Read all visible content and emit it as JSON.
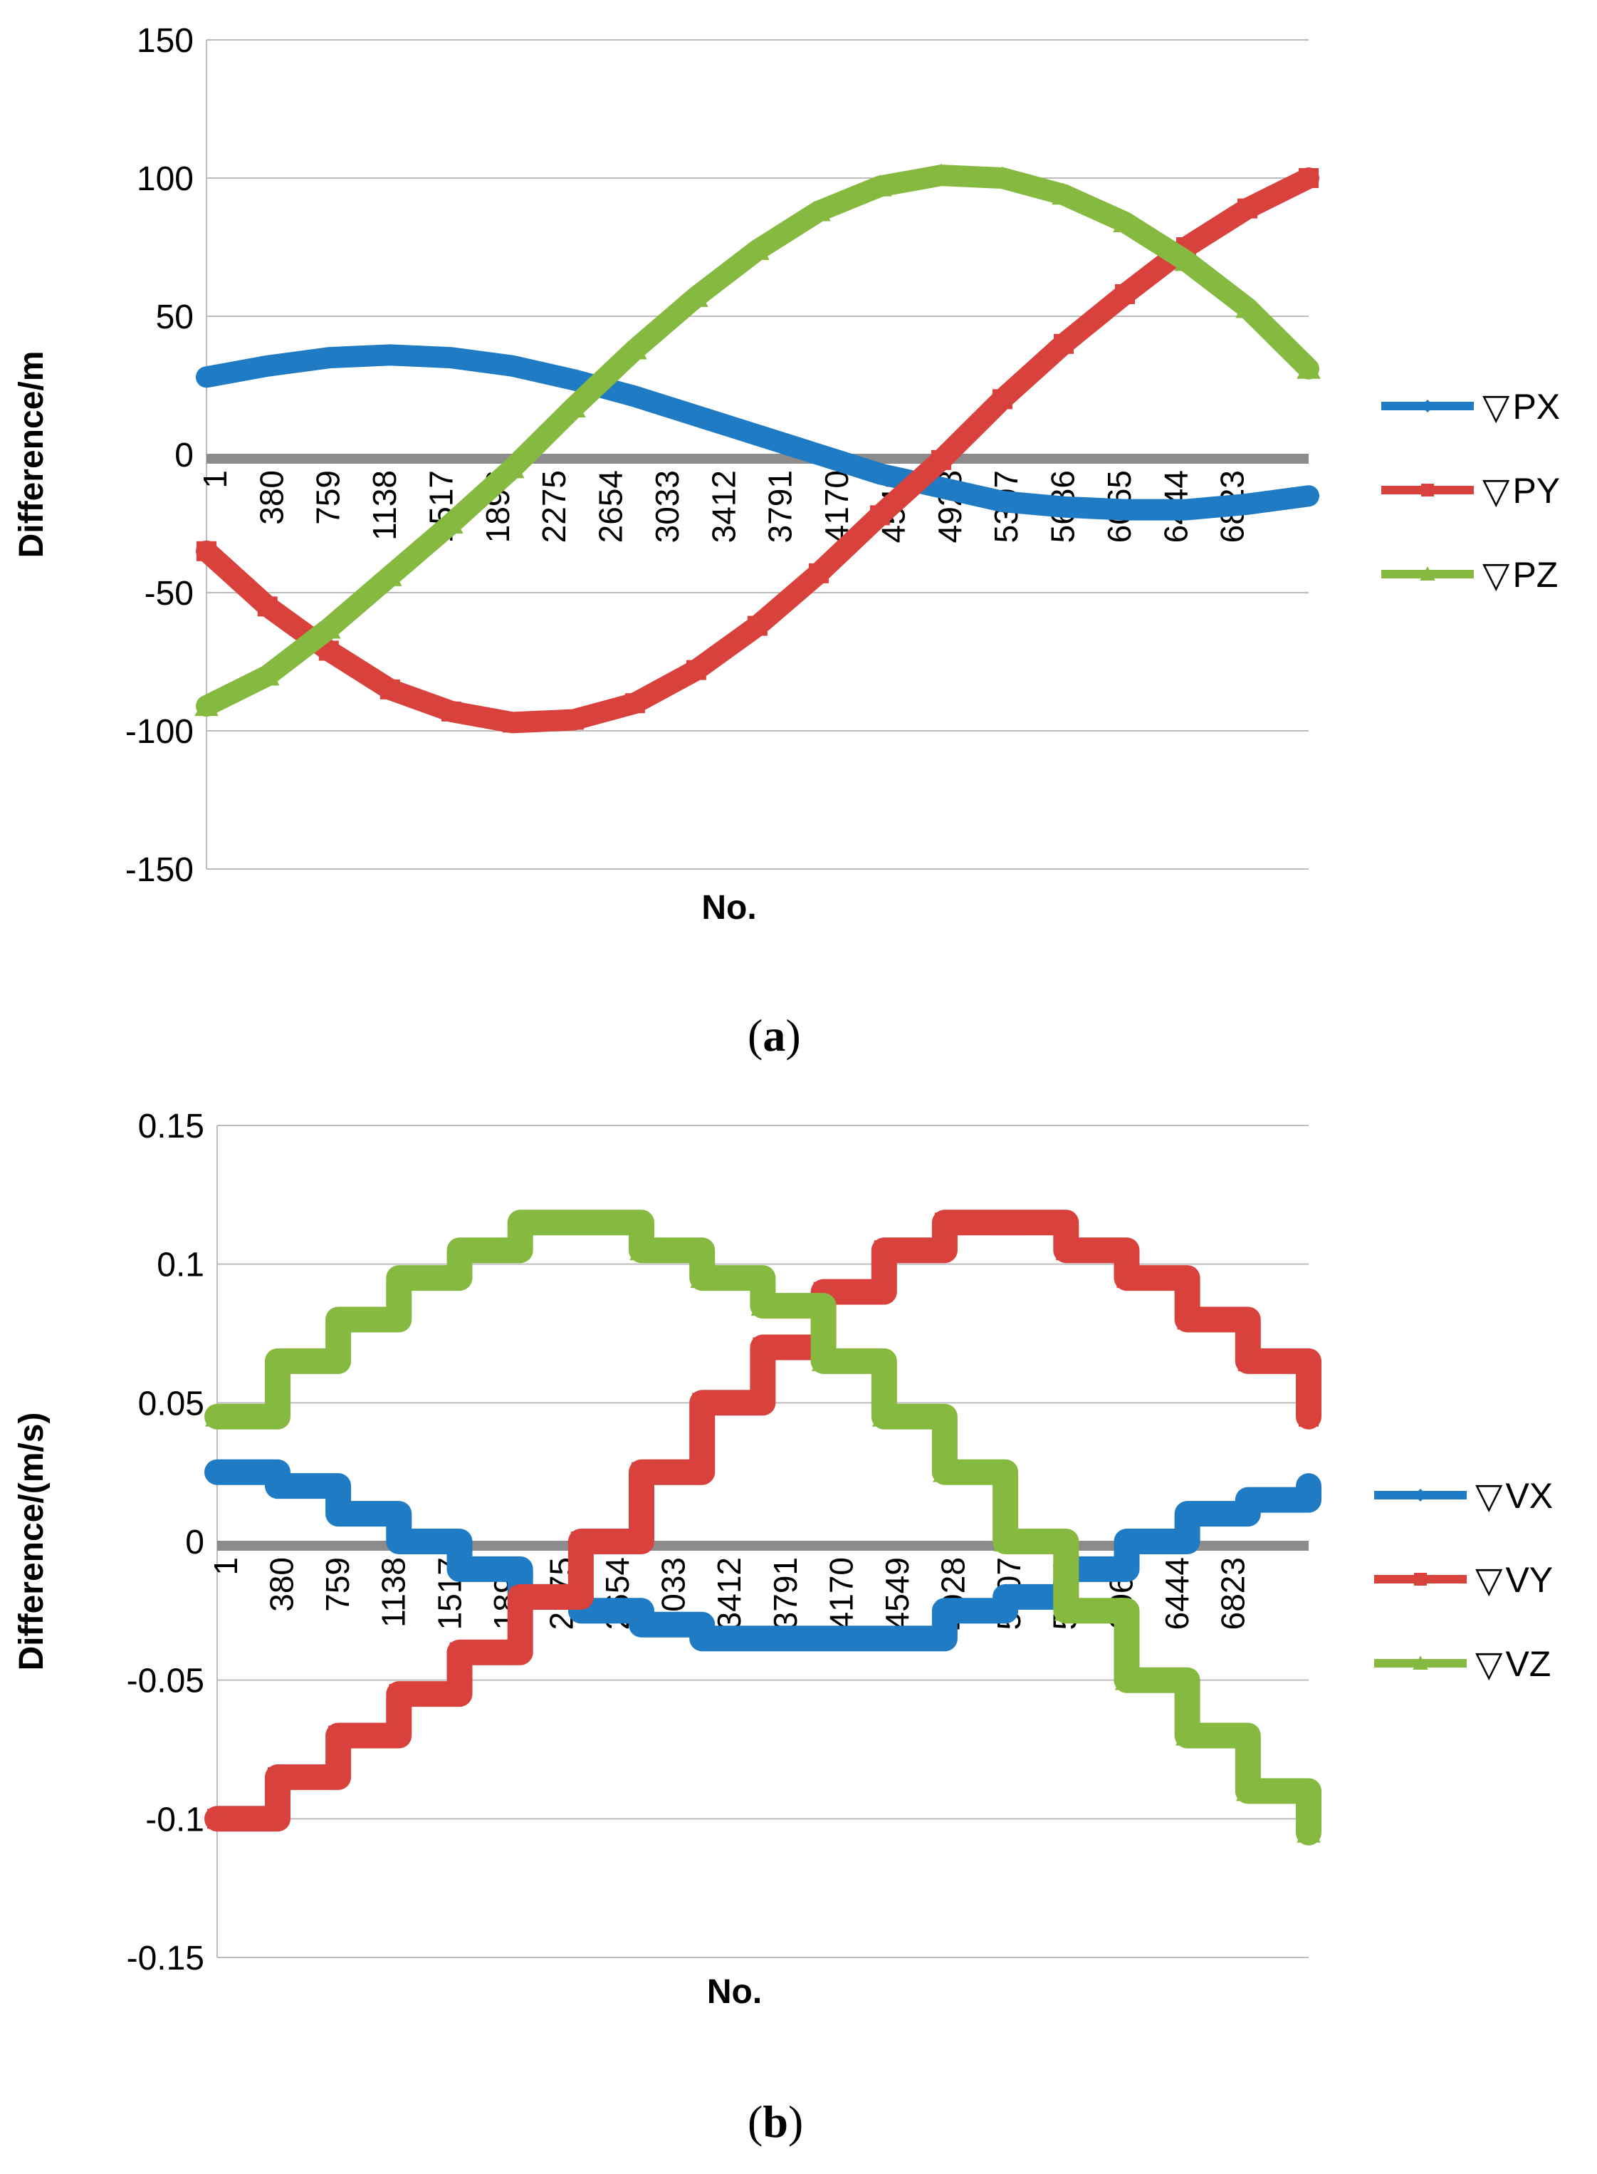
{
  "chart_data": [
    {
      "type": "line",
      "panel_label": "a",
      "xlabel": "No.",
      "ylabel": "Difference/m",
      "ylim": [
        -150,
        150
      ],
      "yticks": [
        "-150",
        "-100",
        "-50",
        "0",
        "50",
        "100",
        "150"
      ],
      "xlim": [
        1,
        7200
      ],
      "xticks": [
        "1",
        "380",
        "759",
        "1138",
        "1517",
        "1896",
        "2275",
        "2654",
        "3033",
        "3412",
        "3791",
        "4170",
        "4549",
        "4928",
        "5307",
        "5686",
        "6065",
        "6444",
        "6823"
      ],
      "legend_position": "right",
      "legend_symbol": "▽",
      "series": [
        {
          "name": "PX",
          "color": "#1f7bc4",
          "marker": "diamond",
          "x": [
            1,
            400,
            800,
            1200,
            1600,
            2000,
            2400,
            2800,
            3200,
            3600,
            4000,
            4400,
            4800,
            5200,
            5600,
            6000,
            6400,
            6800,
            7200
          ],
          "y": [
            28,
            32,
            35,
            36,
            35,
            32,
            27,
            21,
            14,
            7,
            0,
            -7,
            -12,
            -17,
            -19,
            -20,
            -20,
            -18,
            -15
          ]
        },
        {
          "name": "PY",
          "color": "#d9423c",
          "marker": "square",
          "x": [
            1,
            400,
            800,
            1200,
            1600,
            2000,
            2400,
            2800,
            3200,
            3600,
            4000,
            4400,
            4800,
            5200,
            5600,
            6000,
            6400,
            6800,
            7200
          ],
          "y": [
            -35,
            -55,
            -71,
            -85,
            -93,
            -97,
            -96,
            -90,
            -78,
            -62,
            -43,
            -22,
            -2,
            20,
            40,
            58,
            75,
            89,
            100
          ]
        },
        {
          "name": "PZ",
          "color": "#86b940",
          "marker": "triangle",
          "x": [
            1,
            400,
            800,
            1200,
            1600,
            2000,
            2400,
            2800,
            3200,
            3600,
            4000,
            4400,
            4800,
            5200,
            5600,
            6000,
            6400,
            6800,
            7200
          ],
          "y": [
            -91,
            -80,
            -63,
            -44,
            -25,
            -5,
            17,
            38,
            57,
            74,
            88,
            97,
            101,
            100,
            94,
            84,
            70,
            53,
            31
          ]
        }
      ]
    },
    {
      "type": "line",
      "panel_label": "b",
      "xlabel": "No.",
      "ylabel": "Difference/(m/s)",
      "ylim": [
        -0.15,
        0.15
      ],
      "yticks": [
        "-0.15",
        "-0.1",
        "-0.05",
        "0",
        "0.05",
        "0.1",
        "0.15"
      ],
      "xlim": [
        1,
        7200
      ],
      "xticks": [
        "1",
        "380",
        "759",
        "1138",
        "1517",
        "1896",
        "2275",
        "2654",
        "3033",
        "3412",
        "3791",
        "4170",
        "4549",
        "4928",
        "5307",
        "5686",
        "6065",
        "6444",
        "6823"
      ],
      "legend_position": "right",
      "legend_symbol": "▽",
      "series": [
        {
          "name": "VX",
          "color": "#1f7bc4",
          "marker": "diamond",
          "x": [
            1,
            400,
            800,
            1200,
            1600,
            2000,
            2400,
            2800,
            3200,
            3600,
            4000,
            4400,
            4800,
            5200,
            5600,
            6000,
            6400,
            6800,
            7200
          ],
          "y": [
            0.025,
            0.02,
            0.01,
            0.0,
            -0.01,
            -0.02,
            -0.025,
            -0.03,
            -0.035,
            -0.035,
            -0.035,
            -0.035,
            -0.025,
            -0.02,
            -0.01,
            0.0,
            0.01,
            0.015,
            0.02
          ]
        },
        {
          "name": "VY",
          "color": "#d9423c",
          "marker": "square",
          "x": [
            1,
            400,
            800,
            1200,
            1600,
            2000,
            2400,
            2800,
            3200,
            3600,
            4000,
            4400,
            4800,
            5200,
            5600,
            6000,
            6400,
            6800,
            7200
          ],
          "y": [
            -0.1,
            -0.085,
            -0.07,
            -0.055,
            -0.04,
            -0.02,
            0.0,
            0.025,
            0.05,
            0.07,
            0.09,
            0.105,
            0.115,
            0.115,
            0.105,
            0.095,
            0.08,
            0.065,
            0.045
          ]
        },
        {
          "name": "VZ",
          "color": "#86b940",
          "marker": "triangle",
          "x": [
            1,
            400,
            800,
            1200,
            1600,
            2000,
            2400,
            2800,
            3200,
            3600,
            4000,
            4400,
            4800,
            5200,
            5600,
            6000,
            6400,
            6800,
            7200
          ],
          "y": [
            0.045,
            0.065,
            0.08,
            0.095,
            0.105,
            0.115,
            0.115,
            0.105,
            0.095,
            0.085,
            0.065,
            0.045,
            0.025,
            0.0,
            -0.025,
            -0.05,
            -0.07,
            -0.09,
            -0.105
          ]
        }
      ]
    }
  ]
}
